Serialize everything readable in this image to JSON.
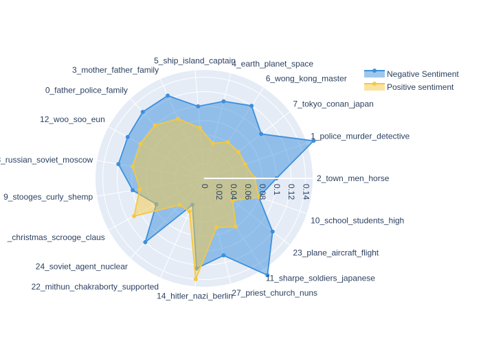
{
  "chart_data": {
    "type": "radar",
    "radial_range": [
      0,
      0.15
    ],
    "radial_ticks": [
      "0",
      "0.02",
      "0.04",
      "0.06",
      "0.08",
      "0.1",
      "0.12",
      "0.14"
    ],
    "radial_tick_values": [
      0,
      0.02,
      0.04,
      0.06,
      0.08,
      0.1,
      0.12,
      0.14
    ],
    "legend_position": "top-right",
    "categories": [
      "2_town_men_horse",
      "1_police_murder_detective",
      "7_tokyo_conan_japan",
      "6_wong_kong_master",
      "4_earth_planet_space",
      "5_ship_island_captain",
      "3_mother_father_family",
      "0_father_police_family",
      "12_woo_soo_eun",
      "8_russian_soviet_moscow",
      "9_stooges_curly_shemp",
      "_christmas_scrooge_claus",
      "24_soviet_agent_nuclear",
      "22_mithun_chakraborty_supported",
      "14_hitler_nazi_berlin",
      "27_priest_church_nuns",
      "11_sharpe_soldiers_japanese",
      "23_plane_aircraft_flight",
      "10_school_students_high"
    ],
    "series": [
      {
        "name": "Negative Sentiment",
        "color": "#3d8fdc",
        "values": [
          0.1,
          0.16,
          0.1,
          0.12,
          0.11,
          0.1,
          0.125,
          0.125,
          0.12,
          0.12,
          0.1,
          0.075,
          0.12,
          0.04,
          0.125,
          0.11,
          0.16,
          0.12,
          0.08
        ]
      },
      {
        "name": "Positive sentiment",
        "color": "#f5c842",
        "values": [
          0.07,
          0.06,
          0.06,
          0.06,
          0.05,
          0.07,
          0.09,
          0.1,
          0.1,
          0.1,
          0.09,
          0.11,
          0.05,
          0.05,
          0.14,
          0.07,
          0.08,
          0.05,
          0.08
        ]
      }
    ]
  }
}
